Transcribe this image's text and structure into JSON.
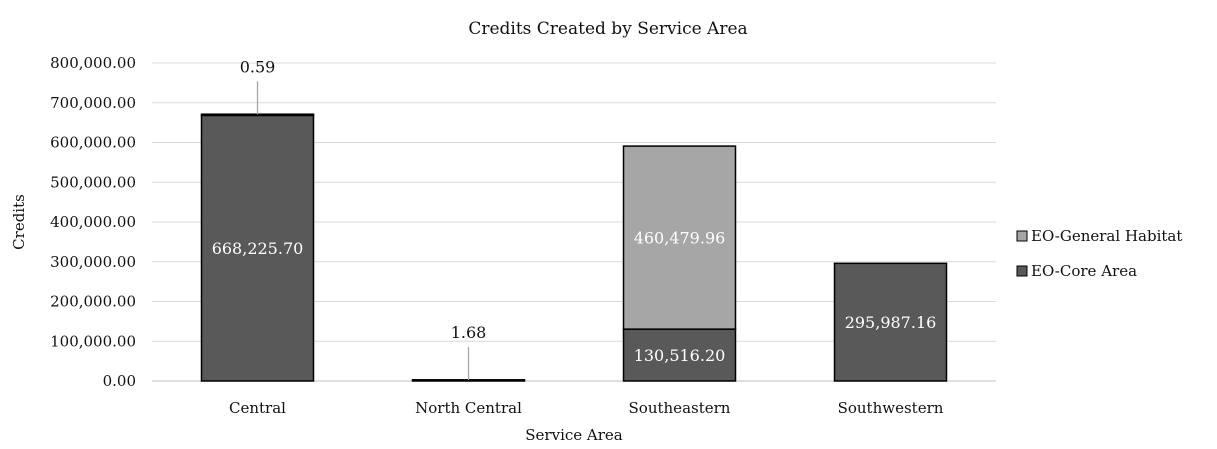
{
  "chart_data": {
    "type": "bar",
    "stacked": true,
    "title": "Credits Created by Service Area",
    "xlabel": "Service Area",
    "ylabel": "Credits",
    "ylim": [
      0,
      800000
    ],
    "y_ticks": [
      0,
      100000,
      200000,
      300000,
      400000,
      500000,
      600000,
      700000,
      800000
    ],
    "y_tick_labels": [
      "0.00",
      "100,000.00",
      "200,000.00",
      "300,000.00",
      "400,000.00",
      "500,000.00",
      "600,000.00",
      "700,000.00",
      "800,000.00"
    ],
    "categories": [
      "Central",
      "North Central",
      "Southeastern",
      "Southwestern"
    ],
    "grid": true,
    "legend_position": "right",
    "series": [
      {
        "name": "EO-Core Area",
        "color": "#595959",
        "values": [
          668225.7,
          0,
          130516.2,
          295987.16
        ],
        "labels": [
          "668,225.70",
          "",
          "130,516.20",
          "295,987.16"
        ]
      },
      {
        "name": "EO-General Habitat",
        "color": "#a6a6a6",
        "values": [
          0.59,
          1.68,
          460479.96,
          0
        ],
        "labels": [
          "0.59",
          "1.68",
          "460,479.96",
          ""
        ]
      }
    ]
  }
}
